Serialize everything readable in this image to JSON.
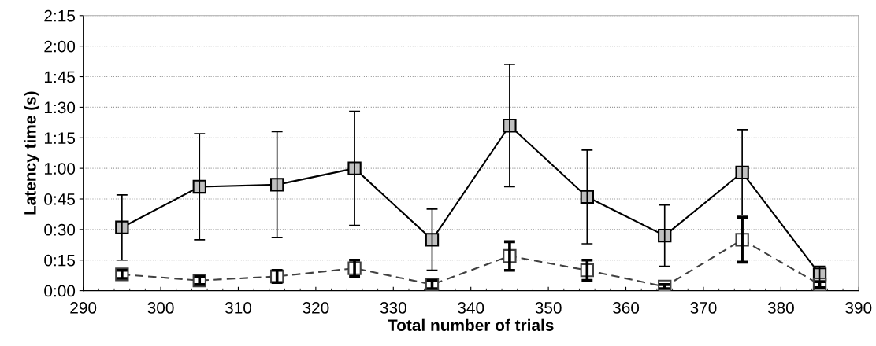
{
  "chart_data": {
    "type": "line",
    "xlabel": "Total number of trials",
    "ylabel": "Latency time (s)",
    "x": [
      295,
      305,
      315,
      325,
      335,
      345,
      355,
      365,
      375,
      385
    ],
    "series": [
      {
        "color": "#000000",
        "line_style": "solid",
        "values": [
          31,
          51,
          52,
          60,
          25,
          81,
          46,
          27,
          58,
          8
        ],
        "errors": [
          16,
          26,
          26,
          28,
          15,
          30,
          23,
          15,
          21,
          4
        ]
      },
      {
        "color": "#404040",
        "line_style": "dashed",
        "values": [
          8,
          5,
          7,
          11,
          3,
          17,
          10,
          2,
          25,
          3
        ],
        "errors": [
          2,
          2,
          3,
          4,
          2,
          7,
          5,
          1,
          11,
          1.5
        ]
      }
    ],
    "marker": "square",
    "xlim": [
      290,
      390
    ],
    "xticks": [
      290,
      300,
      310,
      320,
      330,
      340,
      350,
      360,
      370,
      380,
      390
    ],
    "ylim": [
      0,
      135
    ],
    "yticks": [
      {
        "value": 0,
        "label": "0:00"
      },
      {
        "value": 15,
        "label": "0:15"
      },
      {
        "value": 30,
        "label": "0:30"
      },
      {
        "value": 45,
        "label": "0:45"
      },
      {
        "value": 60,
        "label": "1:00"
      },
      {
        "value": 75,
        "label": "1:15"
      },
      {
        "value": 90,
        "label": "1:30"
      },
      {
        "value": 105,
        "label": "1:45"
      },
      {
        "value": 120,
        "label": "2:00"
      },
      {
        "value": 135,
        "label": "2:15"
      }
    ],
    "grid": "y"
  }
}
